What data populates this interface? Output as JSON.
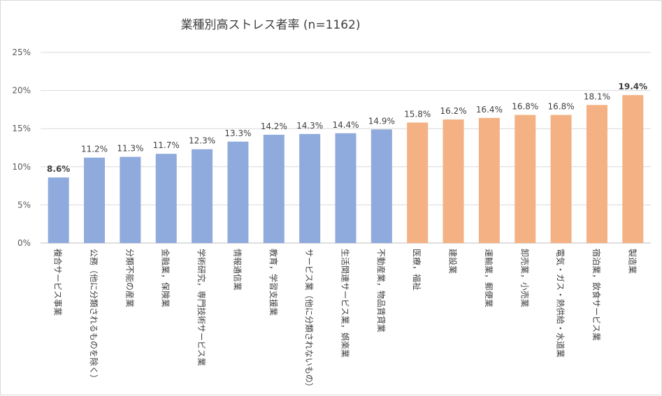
{
  "chart_data": {
    "type": "bar",
    "title": "業種別高ストレス者率 (n=1162)",
    "xlabel": "",
    "ylabel": "",
    "ylim": [
      0,
      25
    ],
    "yticks": [
      "0%",
      "5%",
      "10%",
      "15%",
      "20%",
      "25%"
    ],
    "grid": true,
    "legend": "none",
    "value_format": "percent-1dp",
    "colors": {
      "blue": "#8faadc",
      "orange": "#f4b183",
      "lowest_label": "#2e75b6",
      "highest_label": "#ed7d31",
      "normal_label": "#404040"
    },
    "categories": [
      "複合サービス事業",
      "公務（他に分類されるものを除く）",
      "分類不能の産業",
      "金融業，保険業",
      "学術研究，専門技術サービス業",
      "情報通信業",
      "教育，学習支援業",
      "サービス業（他に分類されないもの）",
      "生活関連サービス業，娯楽業",
      "不動産業，物品賃貸業",
      "医療，福祉",
      "建設業",
      "運輸業，郵便業",
      "卸売業，小売業",
      "電気・ガス・熱供給・水道業",
      "宿泊業，飲食サービス業",
      "製造業"
    ],
    "values": [
      8.6,
      11.2,
      11.3,
      11.7,
      12.3,
      13.3,
      14.2,
      14.3,
      14.4,
      14.9,
      15.8,
      16.2,
      16.4,
      16.8,
      16.8,
      18.1,
      19.4
    ],
    "bar_color_group": [
      "blue",
      "blue",
      "blue",
      "blue",
      "blue",
      "blue",
      "blue",
      "blue",
      "blue",
      "blue",
      "orange",
      "orange",
      "orange",
      "orange",
      "orange",
      "orange",
      "orange"
    ],
    "highlight": {
      "lowest_index": 0,
      "highest_index": 16
    }
  }
}
